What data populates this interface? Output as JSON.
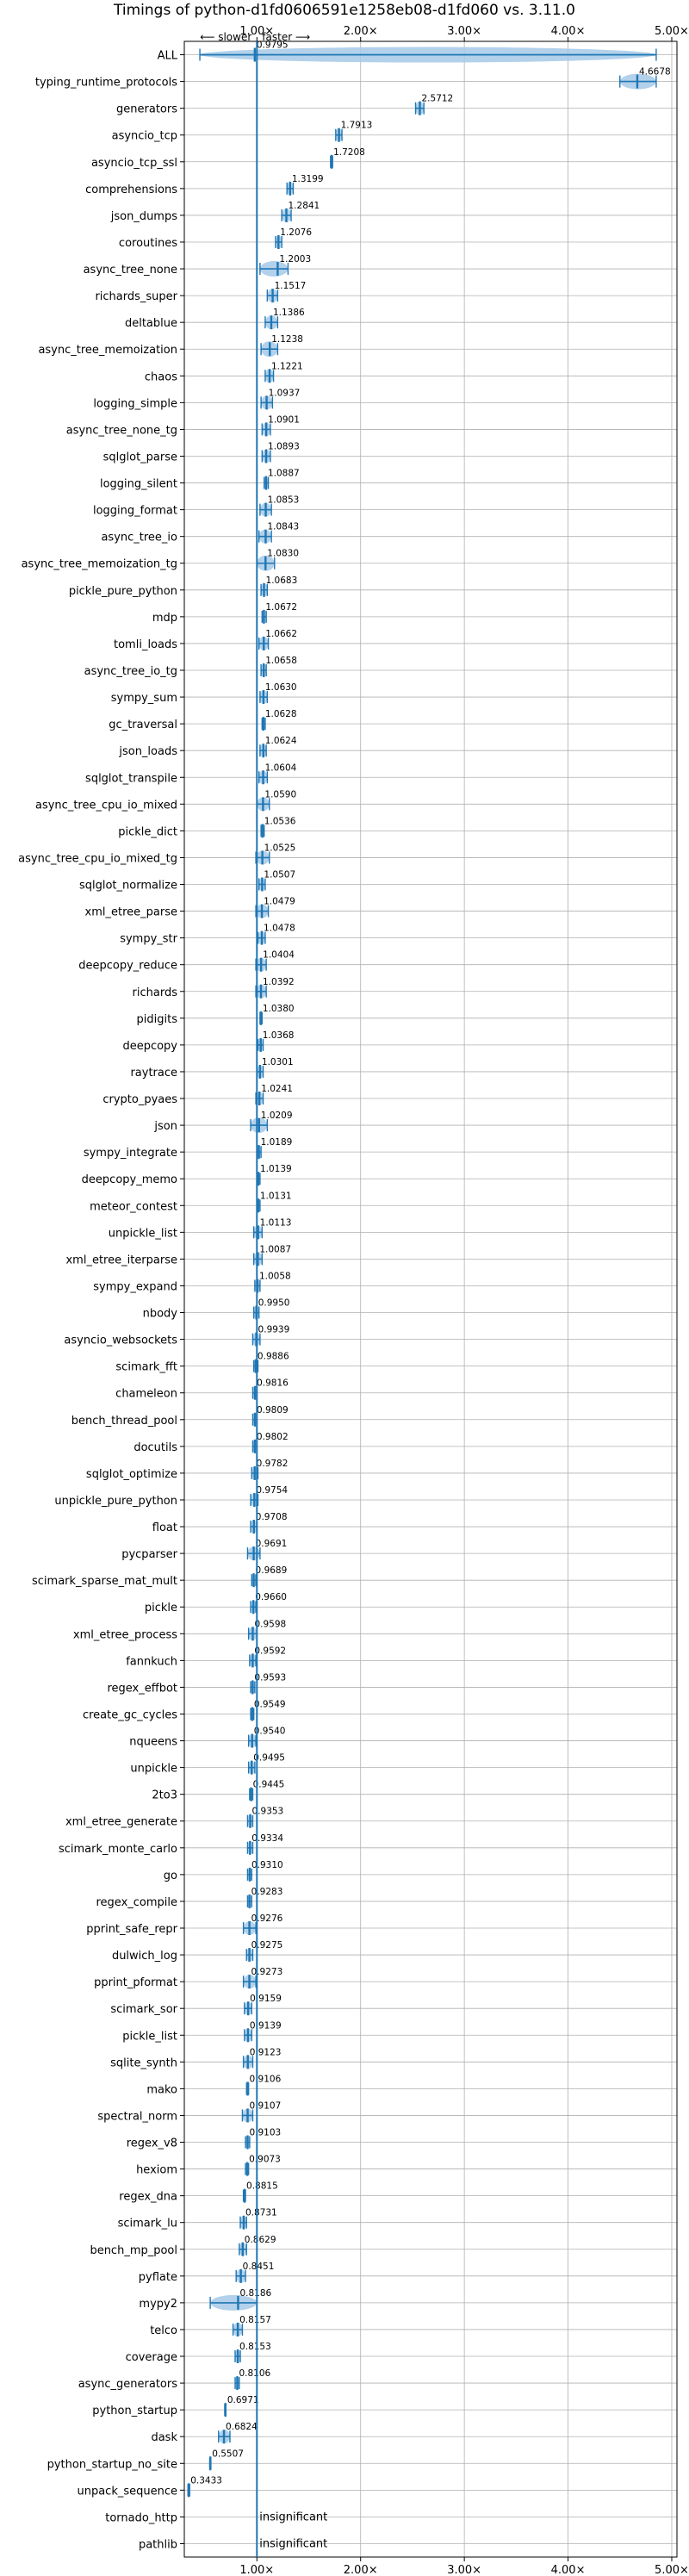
{
  "chart_data": {
    "type": "scatter",
    "title": "Timings of python-d1fd0606591e1258eb08-d1fd060 vs. 3.11.0",
    "direction_labels": {
      "slower": "⟵ slower",
      "faster": "faster ⟶"
    },
    "x_ticks": [
      "1.00×",
      "2.00×",
      "3.00×",
      "4.00×",
      "5.00×"
    ],
    "x_tick_values": [
      1,
      2,
      3,
      4,
      5
    ],
    "xlim": [
      0.3,
      5.05
    ],
    "reference_line": 1.0,
    "grid": true,
    "colors": {
      "primary": "#1f77b4",
      "light": "#a6c9e8",
      "grid": "#b0b0b0"
    },
    "benchmarks": [
      {
        "name": "ALL",
        "value": 0.9795,
        "label": "0.9795",
        "lo": 0.45,
        "hi": 4.85
      },
      {
        "name": "typing_runtime_protocols",
        "value": 4.6678,
        "label": "4.6678",
        "lo": 4.5,
        "hi": 4.85
      },
      {
        "name": "generators",
        "value": 2.5712,
        "label": "2.5712",
        "lo": 2.53,
        "hi": 2.61
      },
      {
        "name": "asyncio_tcp",
        "value": 1.7913,
        "label": "1.7913",
        "lo": 1.76,
        "hi": 1.82
      },
      {
        "name": "asyncio_tcp_ssl",
        "value": 1.7208,
        "label": "1.7208",
        "lo": 1.71,
        "hi": 1.73
      },
      {
        "name": "comprehensions",
        "value": 1.3199,
        "label": "1.3199",
        "lo": 1.29,
        "hi": 1.35
      },
      {
        "name": "json_dumps",
        "value": 1.2841,
        "label": "1.2841",
        "lo": 1.24,
        "hi": 1.33
      },
      {
        "name": "coroutines",
        "value": 1.2076,
        "label": "1.2076",
        "lo": 1.18,
        "hi": 1.24
      },
      {
        "name": "async_tree_none",
        "value": 1.2003,
        "label": "1.2003",
        "lo": 1.03,
        "hi": 1.3
      },
      {
        "name": "richards_super",
        "value": 1.1517,
        "label": "1.1517",
        "lo": 1.1,
        "hi": 1.2
      },
      {
        "name": "deltablue",
        "value": 1.1386,
        "label": "1.1386",
        "lo": 1.08,
        "hi": 1.2
      },
      {
        "name": "async_tree_memoization",
        "value": 1.1238,
        "label": "1.1238",
        "lo": 1.04,
        "hi": 1.2
      },
      {
        "name": "chaos",
        "value": 1.1221,
        "label": "1.1221",
        "lo": 1.08,
        "hi": 1.16
      },
      {
        "name": "logging_simple",
        "value": 1.0937,
        "label": "1.0937",
        "lo": 1.04,
        "hi": 1.15
      },
      {
        "name": "async_tree_none_tg",
        "value": 1.0901,
        "label": "1.0901",
        "lo": 1.05,
        "hi": 1.13
      },
      {
        "name": "sqlglot_parse",
        "value": 1.0893,
        "label": "1.0893",
        "lo": 1.05,
        "hi": 1.13
      },
      {
        "name": "logging_silent",
        "value": 1.0887,
        "label": "1.0887",
        "lo": 1.07,
        "hi": 1.11
      },
      {
        "name": "logging_format",
        "value": 1.0853,
        "label": "1.0853",
        "lo": 1.03,
        "hi": 1.14
      },
      {
        "name": "async_tree_io",
        "value": 1.0843,
        "label": "1.0843",
        "lo": 1.02,
        "hi": 1.14
      },
      {
        "name": "async_tree_memoization_tg",
        "value": 1.083,
        "label": "1.0830",
        "lo": 1.0,
        "hi": 1.17
      },
      {
        "name": "pickle_pure_python",
        "value": 1.0683,
        "label": "1.0683",
        "lo": 1.04,
        "hi": 1.1
      },
      {
        "name": "mdp",
        "value": 1.0672,
        "label": "1.0672",
        "lo": 1.05,
        "hi": 1.09
      },
      {
        "name": "tomli_loads",
        "value": 1.0662,
        "label": "1.0662",
        "lo": 1.02,
        "hi": 1.11
      },
      {
        "name": "async_tree_io_tg",
        "value": 1.0658,
        "label": "1.0658",
        "lo": 1.04,
        "hi": 1.09
      },
      {
        "name": "sympy_sum",
        "value": 1.063,
        "label": "1.0630",
        "lo": 1.03,
        "hi": 1.1
      },
      {
        "name": "gc_traversal",
        "value": 1.0628,
        "label": "1.0628",
        "lo": 1.05,
        "hi": 1.08
      },
      {
        "name": "json_loads",
        "value": 1.0624,
        "label": "1.0624",
        "lo": 1.03,
        "hi": 1.09
      },
      {
        "name": "sqlglot_transpile",
        "value": 1.0604,
        "label": "1.0604",
        "lo": 1.02,
        "hi": 1.1
      },
      {
        "name": "async_tree_cpu_io_mixed",
        "value": 1.059,
        "label": "1.0590",
        "lo": 1.0,
        "hi": 1.12
      },
      {
        "name": "pickle_dict",
        "value": 1.0536,
        "label": "1.0536",
        "lo": 1.04,
        "hi": 1.07
      },
      {
        "name": "async_tree_cpu_io_mixed_tg",
        "value": 1.0525,
        "label": "1.0525",
        "lo": 0.99,
        "hi": 1.12
      },
      {
        "name": "sqlglot_normalize",
        "value": 1.0507,
        "label": "1.0507",
        "lo": 1.02,
        "hi": 1.08
      },
      {
        "name": "xml_etree_parse",
        "value": 1.0479,
        "label": "1.0479",
        "lo": 0.99,
        "hi": 1.11
      },
      {
        "name": "sympy_str",
        "value": 1.0478,
        "label": "1.0478",
        "lo": 1.01,
        "hi": 1.08
      },
      {
        "name": "deepcopy_reduce",
        "value": 1.0404,
        "label": "1.0404",
        "lo": 0.99,
        "hi": 1.09
      },
      {
        "name": "richards",
        "value": 1.0392,
        "label": "1.0392",
        "lo": 0.99,
        "hi": 1.09
      },
      {
        "name": "pidigits",
        "value": 1.038,
        "label": "1.0380",
        "lo": 1.03,
        "hi": 1.05
      },
      {
        "name": "deepcopy",
        "value": 1.0368,
        "label": "1.0368",
        "lo": 1.01,
        "hi": 1.06
      },
      {
        "name": "raytrace",
        "value": 1.0301,
        "label": "1.0301",
        "lo": 1.0,
        "hi": 1.06
      },
      {
        "name": "crypto_pyaes",
        "value": 1.0241,
        "label": "1.0241",
        "lo": 0.99,
        "hi": 1.06
      },
      {
        "name": "json",
        "value": 1.0209,
        "label": "1.0209",
        "lo": 0.94,
        "hi": 1.1
      },
      {
        "name": "sympy_integrate",
        "value": 1.0189,
        "label": "1.0189",
        "lo": 1.0,
        "hi": 1.04
      },
      {
        "name": "deepcopy_memo",
        "value": 1.0139,
        "label": "1.0139",
        "lo": 1.0,
        "hi": 1.03
      },
      {
        "name": "meteor_contest",
        "value": 1.0131,
        "label": "1.0131",
        "lo": 1.0,
        "hi": 1.03
      },
      {
        "name": "unpickle_list",
        "value": 1.0113,
        "label": "1.0113",
        "lo": 0.97,
        "hi": 1.05
      },
      {
        "name": "xml_etree_iterparse",
        "value": 1.0087,
        "label": "1.0087",
        "lo": 0.97,
        "hi": 1.05
      },
      {
        "name": "sympy_expand",
        "value": 1.0058,
        "label": "1.0058",
        "lo": 0.98,
        "hi": 1.03
      },
      {
        "name": "nbody",
        "value": 0.995,
        "label": "0.9950",
        "lo": 0.97,
        "hi": 1.02
      },
      {
        "name": "asyncio_websockets",
        "value": 0.9939,
        "label": "0.9939",
        "lo": 0.96,
        "hi": 1.03
      },
      {
        "name": "scimark_fft",
        "value": 0.9886,
        "label": "0.9886",
        "lo": 0.97,
        "hi": 1.01
      },
      {
        "name": "chameleon",
        "value": 0.9816,
        "label": "0.9816",
        "lo": 0.96,
        "hi": 1.0
      },
      {
        "name": "bench_thread_pool",
        "value": 0.9809,
        "label": "0.9809",
        "lo": 0.96,
        "hi": 1.0
      },
      {
        "name": "docutils",
        "value": 0.9802,
        "label": "0.9802",
        "lo": 0.96,
        "hi": 1.0
      },
      {
        "name": "sqlglot_optimize",
        "value": 0.9782,
        "label": "0.9782",
        "lo": 0.95,
        "hi": 1.01
      },
      {
        "name": "unpickle_pure_python",
        "value": 0.9754,
        "label": "0.9754",
        "lo": 0.94,
        "hi": 1.01
      },
      {
        "name": "float",
        "value": 0.9708,
        "label": "0.9708",
        "lo": 0.94,
        "hi": 1.0
      },
      {
        "name": "pycparser",
        "value": 0.9691,
        "label": "0.9691",
        "lo": 0.91,
        "hi": 1.03
      },
      {
        "name": "scimark_sparse_mat_mult",
        "value": 0.9689,
        "label": "0.9689",
        "lo": 0.95,
        "hi": 0.99
      },
      {
        "name": "pickle",
        "value": 0.966,
        "label": "0.9660",
        "lo": 0.94,
        "hi": 0.99
      },
      {
        "name": "xml_etree_process",
        "value": 0.9598,
        "label": "0.9598",
        "lo": 0.92,
        "hi": 1.0
      },
      {
        "name": "fannkuch",
        "value": 0.9592,
        "label": "0.9592",
        "lo": 0.93,
        "hi": 0.99
      },
      {
        "name": "regex_effbot",
        "value": 0.9593,
        "label": "0.9593",
        "lo": 0.94,
        "hi": 0.98
      },
      {
        "name": "create_gc_cycles",
        "value": 0.9549,
        "label": "0.9549",
        "lo": 0.94,
        "hi": 0.97
      },
      {
        "name": "nqueens",
        "value": 0.954,
        "label": "0.9540",
        "lo": 0.92,
        "hi": 0.99
      },
      {
        "name": "unpickle",
        "value": 0.9495,
        "label": "0.9495",
        "lo": 0.92,
        "hi": 0.98
      },
      {
        "name": "2to3",
        "value": 0.9445,
        "label": "0.9445",
        "lo": 0.93,
        "hi": 0.96
      },
      {
        "name": "xml_etree_generate",
        "value": 0.9353,
        "label": "0.9353",
        "lo": 0.91,
        "hi": 0.96
      },
      {
        "name": "scimark_monte_carlo",
        "value": 0.9334,
        "label": "0.9334",
        "lo": 0.91,
        "hi": 0.96
      },
      {
        "name": "go",
        "value": 0.931,
        "label": "0.9310",
        "lo": 0.91,
        "hi": 0.95
      },
      {
        "name": "regex_compile",
        "value": 0.9283,
        "label": "0.9283",
        "lo": 0.91,
        "hi": 0.95
      },
      {
        "name": "pprint_safe_repr",
        "value": 0.9276,
        "label": "0.9276",
        "lo": 0.87,
        "hi": 0.99
      },
      {
        "name": "dulwich_log",
        "value": 0.9275,
        "label": "0.9275",
        "lo": 0.9,
        "hi": 0.96
      },
      {
        "name": "pprint_pformat",
        "value": 0.9273,
        "label": "0.9273",
        "lo": 0.87,
        "hi": 0.99
      },
      {
        "name": "scimark_sor",
        "value": 0.9159,
        "label": "0.9159",
        "lo": 0.88,
        "hi": 0.95
      },
      {
        "name": "pickle_list",
        "value": 0.9139,
        "label": "0.9139",
        "lo": 0.88,
        "hi": 0.95
      },
      {
        "name": "sqlite_synth",
        "value": 0.9123,
        "label": "0.9123",
        "lo": 0.87,
        "hi": 0.96
      },
      {
        "name": "mako",
        "value": 0.9106,
        "label": "0.9106",
        "lo": 0.9,
        "hi": 0.92
      },
      {
        "name": "spectral_norm",
        "value": 0.9107,
        "label": "0.9107",
        "lo": 0.86,
        "hi": 0.96
      },
      {
        "name": "regex_v8",
        "value": 0.9103,
        "label": "0.9103",
        "lo": 0.89,
        "hi": 0.93
      },
      {
        "name": "hexiom",
        "value": 0.9073,
        "label": "0.9073",
        "lo": 0.89,
        "hi": 0.92
      },
      {
        "name": "regex_dna",
        "value": 0.8815,
        "label": "0.8815",
        "lo": 0.87,
        "hi": 0.89
      },
      {
        "name": "scimark_lu",
        "value": 0.8731,
        "label": "0.8731",
        "lo": 0.84,
        "hi": 0.9
      },
      {
        "name": "bench_mp_pool",
        "value": 0.8629,
        "label": "0.8629",
        "lo": 0.83,
        "hi": 0.9
      },
      {
        "name": "pyflate",
        "value": 0.8451,
        "label": "0.8451",
        "lo": 0.8,
        "hi": 0.89
      },
      {
        "name": "mypy2",
        "value": 0.8186,
        "label": "0.8186",
        "lo": 0.55,
        "hi": 1.0
      },
      {
        "name": "telco",
        "value": 0.8157,
        "label": "0.8157",
        "lo": 0.77,
        "hi": 0.86
      },
      {
        "name": "coverage",
        "value": 0.8153,
        "label": "0.8153",
        "lo": 0.79,
        "hi": 0.84
      },
      {
        "name": "async_generators",
        "value": 0.8106,
        "label": "0.8106",
        "lo": 0.79,
        "hi": 0.83
      },
      {
        "name": "python_startup",
        "value": 0.6971,
        "label": "0.6971",
        "lo": 0.69,
        "hi": 0.7
      },
      {
        "name": "dask",
        "value": 0.6824,
        "label": "0.6824",
        "lo": 0.63,
        "hi": 0.74
      },
      {
        "name": "python_startup_no_site",
        "value": 0.5507,
        "label": "0.5507",
        "lo": 0.545,
        "hi": 0.556
      },
      {
        "name": "unpack_sequence",
        "value": 0.3433,
        "label": "0.3433",
        "lo": 0.335,
        "hi": 0.352
      },
      {
        "name": "tornado_http",
        "value": null,
        "label": "insignificant"
      },
      {
        "name": "pathlib",
        "value": null,
        "label": "insignificant"
      }
    ]
  }
}
